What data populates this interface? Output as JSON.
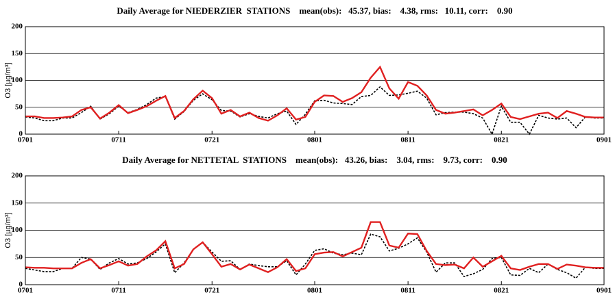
{
  "chart_data": [
    {
      "type": "line",
      "title": "Daily Average for NIEDERZIER  STATIONS    mean(obs):   45.37, bias:    4.38, rms:   10.11, corr:    0.90",
      "ylabel": "O3 [µg/m³]",
      "categories": [
        "0701",
        null,
        null,
        null,
        null,
        null,
        null,
        null,
        null,
        null,
        "0711",
        null,
        null,
        null,
        null,
        null,
        null,
        null,
        null,
        null,
        "0721",
        null,
        null,
        null,
        null,
        null,
        null,
        null,
        null,
        null,
        null,
        "0801",
        null,
        null,
        null,
        null,
        null,
        null,
        null,
        null,
        null,
        "0811",
        null,
        null,
        null,
        null,
        null,
        null,
        null,
        null,
        null,
        "0821",
        null,
        null,
        null,
        null,
        null,
        null,
        null,
        null,
        null,
        null,
        "0901"
      ],
      "ylim": [
        0,
        200
      ],
      "yticks": [
        0,
        50,
        100,
        150,
        200
      ],
      "grid": true,
      "series": [
        {
          "color": "#000000",
          "style": "dotted",
          "values": [
            32,
            30,
            25,
            25,
            30,
            30,
            40,
            52,
            28,
            38,
            52,
            40,
            46,
            55,
            67,
            70,
            28,
            42,
            63,
            75,
            64,
            44,
            43,
            32,
            38,
            33,
            30,
            38,
            43,
            18,
            37,
            62,
            63,
            58,
            57,
            55,
            70,
            72,
            88,
            72,
            73,
            76,
            80,
            67,
            36,
            40,
            41,
            41,
            38,
            30,
            0,
            52,
            22,
            22,
            0,
            35,
            30,
            28,
            30,
            12,
            32,
            30,
            30
          ]
        },
        {
          "color": "#e02020",
          "style": "solid",
          "values": [
            33,
            33,
            30,
            30,
            31,
            33,
            45,
            50,
            29,
            40,
            54,
            39,
            45,
            52,
            62,
            71,
            30,
            43,
            65,
            81,
            67,
            38,
            45,
            33,
            40,
            30,
            25,
            35,
            48,
            27,
            32,
            60,
            72,
            71,
            60,
            67,
            78,
            105,
            125,
            85,
            66,
            97,
            90,
            72,
            45,
            38,
            40,
            43,
            46,
            35,
            45,
            57,
            32,
            28,
            33,
            38,
            40,
            30,
            43,
            38,
            32,
            31,
            31
          ]
        }
      ]
    },
    {
      "type": "line",
      "title": "Daily Average for NETTETAL  STATIONS    mean(obs):   43.26, bias:    3.04, rms:    9.73, corr:    0.90",
      "ylabel": "O3 [µg/m³]",
      "categories": [
        "0701",
        null,
        null,
        null,
        null,
        null,
        null,
        null,
        null,
        null,
        "0711",
        null,
        null,
        null,
        null,
        null,
        null,
        null,
        null,
        null,
        "0721",
        null,
        null,
        null,
        null,
        null,
        null,
        null,
        null,
        null,
        null,
        "0801",
        null,
        null,
        null,
        null,
        null,
        null,
        null,
        null,
        null,
        "0811",
        null,
        null,
        null,
        null,
        null,
        null,
        null,
        null,
        null,
        "0821",
        null,
        null,
        null,
        null,
        null,
        null,
        null,
        null,
        null,
        null,
        "0901"
      ],
      "ylim": [
        0,
        200
      ],
      "yticks": [
        0,
        50,
        100,
        150,
        200
      ],
      "grid": true,
      "series": [
        {
          "color": "#000000",
          "style": "dotted",
          "values": [
            30,
            27,
            24,
            24,
            30,
            30,
            50,
            47,
            28,
            40,
            48,
            38,
            40,
            48,
            60,
            75,
            22,
            40,
            65,
            78,
            60,
            43,
            44,
            28,
            38,
            35,
            33,
            33,
            44,
            18,
            38,
            63,
            66,
            58,
            55,
            58,
            55,
            93,
            88,
            62,
            67,
            75,
            86,
            60,
            23,
            40,
            40,
            15,
            20,
            28,
            48,
            50,
            18,
            17,
            30,
            22,
            38,
            28,
            22,
            12,
            32,
            30,
            30
          ]
        },
        {
          "color": "#e02020",
          "style": "solid",
          "values": [
            32,
            31,
            31,
            30,
            30,
            30,
            40,
            47,
            30,
            36,
            43,
            35,
            38,
            52,
            63,
            80,
            30,
            38,
            65,
            78,
            56,
            33,
            38,
            28,
            37,
            30,
            23,
            32,
            47,
            25,
            30,
            56,
            59,
            60,
            52,
            60,
            68,
            115,
            115,
            72,
            68,
            94,
            93,
            62,
            38,
            36,
            37,
            30,
            50,
            33,
            43,
            53,
            30,
            27,
            33,
            38,
            38,
            29,
            37,
            35,
            32,
            31,
            31
          ]
        }
      ]
    }
  ]
}
